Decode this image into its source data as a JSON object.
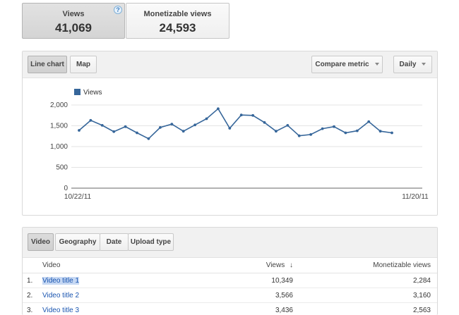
{
  "metrics": [
    {
      "label": "Views",
      "value": "41,069",
      "selected": true,
      "help": "?"
    },
    {
      "label": "Monetizable views",
      "value": "24,593",
      "selected": false
    }
  ],
  "chart_toolbar": {
    "line_chart": "Line chart",
    "map": "Map",
    "compare_metric": "Compare metric",
    "interval": "Daily"
  },
  "colors": {
    "series": "#36669a",
    "grid": "#e3e3e3",
    "link": "#1a55b0"
  },
  "chart_data": {
    "type": "line",
    "legend": "top-left",
    "series": [
      {
        "name": "Views",
        "values": [
          1390,
          1630,
          1510,
          1360,
          1480,
          1330,
          1190,
          1460,
          1540,
          1370,
          1520,
          1670,
          1910,
          1440,
          1760,
          1750,
          1580,
          1370,
          1510,
          1260,
          1290,
          1430,
          1480,
          1330,
          1380,
          1600,
          1370,
          1330
        ]
      }
    ],
    "ylim": [
      0,
      2000
    ],
    "yticks": [
      "2,000",
      "1,500",
      "1,000",
      "500",
      "0"
    ],
    "ytick_values": [
      2000,
      1500,
      1000,
      500,
      0
    ],
    "x_start_label": "10/22/11",
    "x_end_label": "11/20/11",
    "grid": true
  },
  "table_tabs": [
    "Video",
    "Geography",
    "Date",
    "Upload type"
  ],
  "table": {
    "columns": {
      "title": "Video",
      "views": "Views",
      "sort_arrow": "↓",
      "monetizable": "Monetizable views"
    },
    "rows": [
      {
        "num": "1.",
        "title": "Video title 1",
        "views": "10,349",
        "monetizable": "2,284"
      },
      {
        "num": "2.",
        "title": "Video title 2",
        "views": "3,566",
        "monetizable": "3,160"
      },
      {
        "num": "3.",
        "title": "Video title 3",
        "views": "3,436",
        "monetizable": "2,563"
      }
    ]
  }
}
